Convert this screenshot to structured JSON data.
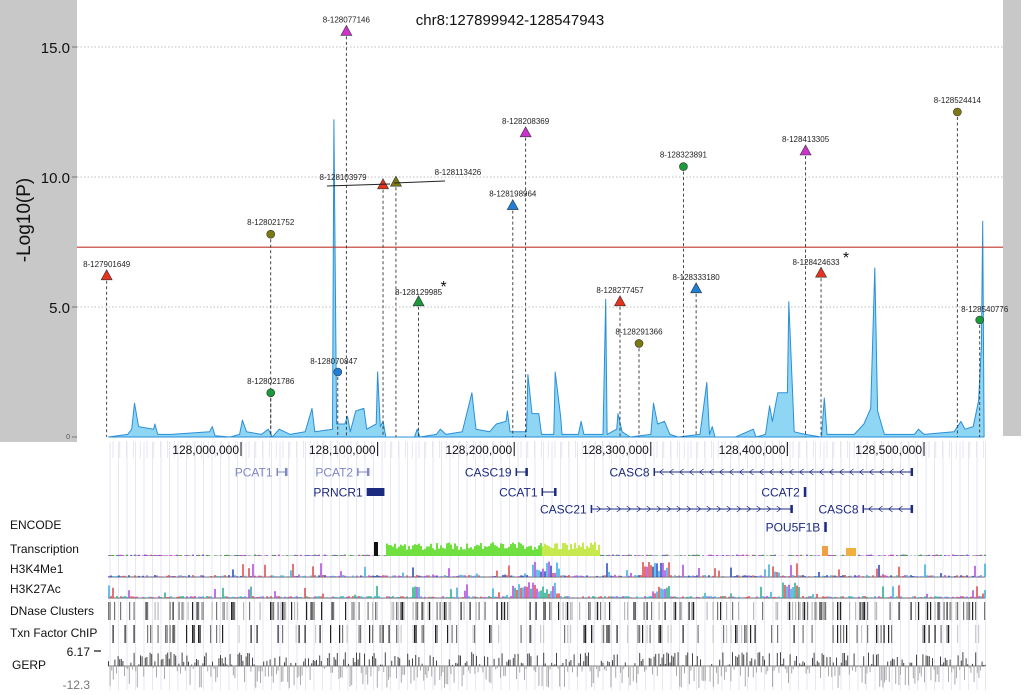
{
  "chart_data": {
    "type": "scatter",
    "title": "chr8:127899942-128547943",
    "ylabel": "-Log10(P)",
    "xlabel": "",
    "xlim": [
      127899942,
      128547943
    ],
    "ylim": [
      0,
      16.5
    ],
    "y_ticks": [
      "15.0",
      "10.0",
      "5.0",
      "0"
    ],
    "y_tick_values": [
      15,
      10,
      5,
      0
    ],
    "x_ticks": [
      "128,000,000",
      "128,100,000",
      "128,200,000",
      "128,300,000",
      "128,400,000",
      "128,500,000"
    ],
    "x_tick_values": [
      128000000,
      128100000,
      128200000,
      128300000,
      128400000,
      128500000
    ],
    "grid": "horizontal dotted",
    "threshold": {
      "value": 7.3,
      "color": "#c0392b"
    },
    "colors": {
      "magenta": "#cc33cc",
      "red": "#e8321e",
      "olive": "#7a7a10",
      "green": "#1a9a3a",
      "blue": "#1e7fd8",
      "area": "#8fd6f5",
      "area_line": "#2a8fd8"
    },
    "points": [
      {
        "label": "8-127901649",
        "pos": 127901649,
        "value": 6.2,
        "shape": "triangle",
        "color": "red"
      },
      {
        "label": "8-128021752",
        "pos": 128021752,
        "value": 7.8,
        "shape": "circle",
        "color": "olive"
      },
      {
        "label": "8-128021786",
        "pos": 128021786,
        "value": 1.7,
        "shape": "circle",
        "color": "green"
      },
      {
        "label": "8-128070847",
        "pos": 128070847,
        "value": 2.5,
        "shape": "circle",
        "color": "blue"
      },
      {
        "label": "8-128077146",
        "pos": 128077146,
        "value": 15.6,
        "shape": "triangle",
        "color": "magenta"
      },
      {
        "label": "8-128103979",
        "pos": 128103979,
        "value": 9.7,
        "shape": "triangle",
        "color": "red"
      },
      {
        "label": "8-128113426",
        "pos": 128113426,
        "value": 9.8,
        "shape": "triangle",
        "color": "olive"
      },
      {
        "label": "8-128129985",
        "pos": 128129985,
        "value": 5.2,
        "shape": "triangle",
        "color": "green",
        "asterisk": "*"
      },
      {
        "label": "8-128198964",
        "pos": 128198964,
        "value": 8.9,
        "shape": "triangle",
        "color": "blue"
      },
      {
        "label": "8-128208369",
        "pos": 128208369,
        "value": 11.7,
        "shape": "triangle",
        "color": "magenta"
      },
      {
        "label": "8-128277457",
        "pos": 128277457,
        "value": 5.2,
        "shape": "triangle",
        "color": "red"
      },
      {
        "label": "8-128291366",
        "pos": 128291366,
        "value": 3.6,
        "shape": "circle",
        "color": "olive"
      },
      {
        "label": "8-128323891",
        "pos": 128323891,
        "value": 10.4,
        "shape": "circle",
        "color": "green"
      },
      {
        "label": "8-128333180",
        "pos": 128333180,
        "value": 5.7,
        "shape": "triangle",
        "color": "blue"
      },
      {
        "label": "8-128413305",
        "pos": 128413305,
        "value": 11.0,
        "shape": "triangle",
        "color": "magenta"
      },
      {
        "label": "8-128424633",
        "pos": 128424633,
        "value": 6.3,
        "shape": "triangle",
        "color": "red",
        "asterisk": "*"
      },
      {
        "label": "8-128524414",
        "pos": 128524414,
        "value": 12.5,
        "shape": "circle",
        "color": "olive"
      },
      {
        "label": "8-128540776",
        "pos": 128540776,
        "value": 4.5,
        "shape": "circle",
        "color": "green"
      }
    ],
    "area_series": [
      [
        127903000,
        0
      ],
      [
        127917000,
        0.1
      ],
      [
        127920000,
        0.3
      ],
      [
        127922000,
        1.3
      ],
      [
        127925000,
        0.4
      ],
      [
        127936000,
        0.3
      ],
      [
        127937000,
        0.5
      ],
      [
        127939000,
        0.1
      ],
      [
        127949000,
        0.1
      ],
      [
        127977000,
        0.2
      ],
      [
        127979000,
        0.4
      ],
      [
        127981000,
        0.05
      ],
      [
        127992000,
        0
      ],
      [
        127999000,
        0.1
      ],
      [
        128001000,
        0.65
      ],
      [
        128004000,
        0.2
      ],
      [
        128015000,
        0.1
      ],
      [
        128020000,
        0.3
      ],
      [
        128023000,
        0
      ],
      [
        128028000,
        0.3
      ],
      [
        128036000,
        0.1
      ],
      [
        128047000,
        0.2
      ],
      [
        128052000,
        1.1
      ],
      [
        128054000,
        0.2
      ],
      [
        128067000,
        0.3
      ],
      [
        128068000,
        12.2
      ],
      [
        128070000,
        0.5
      ],
      [
        128076000,
        0.5
      ],
      [
        128078000,
        0.8
      ],
      [
        128080000,
        0.2
      ],
      [
        128084000,
        1.0
      ],
      [
        128090000,
        1.1
      ],
      [
        128092000,
        0.3
      ],
      [
        128099000,
        0.5
      ],
      [
        128100000,
        2.5
      ],
      [
        128102000,
        0.4
      ],
      [
        128104000,
        0.6
      ],
      [
        128106000,
        0
      ],
      [
        128127000,
        0
      ],
      [
        128129000,
        0.3
      ],
      [
        128131000,
        0
      ],
      [
        128143000,
        0.1
      ],
      [
        128146000,
        0.3
      ],
      [
        128150000,
        0.1
      ],
      [
        128162000,
        0.2
      ],
      [
        128169000,
        1.7
      ],
      [
        128172000,
        0.3
      ],
      [
        128182000,
        0.2
      ],
      [
        128187000,
        0.5
      ],
      [
        128194000,
        0.6
      ],
      [
        128195000,
        1.0
      ],
      [
        128197000,
        0.2
      ],
      [
        128209000,
        0.2
      ],
      [
        128210000,
        2.4
      ],
      [
        128213000,
        0.9
      ],
      [
        128218000,
        0.9
      ],
      [
        128220000,
        0.1
      ],
      [
        128229000,
        0.1
      ],
      [
        128230000,
        2.5
      ],
      [
        128234000,
        0.8
      ],
      [
        128235000,
        0.1
      ],
      [
        128247000,
        0.1
      ],
      [
        128249000,
        0.6
      ],
      [
        128251000,
        0.1
      ],
      [
        128265000,
        0.1
      ],
      [
        128267000,
        5.3
      ],
      [
        128268000,
        0.1
      ],
      [
        128275000,
        0.3
      ],
      [
        128276000,
        0.9
      ],
      [
        128279000,
        0.2
      ],
      [
        128285000,
        0
      ],
      [
        128300000,
        0.1
      ],
      [
        128302000,
        1.3
      ],
      [
        128305000,
        0.5
      ],
      [
        128310000,
        0.6
      ],
      [
        128314000,
        0.1
      ],
      [
        128320000,
        0
      ],
      [
        128336000,
        0.1
      ],
      [
        128341000,
        2.1
      ],
      [
        128343000,
        0.1
      ],
      [
        128345000,
        0.4
      ],
      [
        128347000,
        0
      ],
      [
        128362000,
        0
      ],
      [
        128375000,
        0.3
      ],
      [
        128377000,
        0
      ],
      [
        128384000,
        0.1
      ],
      [
        128387000,
        1.2
      ],
      [
        128389000,
        0.6
      ],
      [
        128393000,
        1.7
      ],
      [
        128400000,
        1.7
      ],
      [
        128401000,
        5.2
      ],
      [
        128405000,
        0.2
      ],
      [
        128413000,
        0.1
      ],
      [
        128425000,
        0
      ],
      [
        128427000,
        1.5
      ],
      [
        128429000,
        0.1
      ],
      [
        128449000,
        0.1
      ],
      [
        128456000,
        0.5
      ],
      [
        128461000,
        1.1
      ],
      [
        128464000,
        6.5
      ],
      [
        128466000,
        1.0
      ],
      [
        128471000,
        0.1
      ],
      [
        128493000,
        0.1
      ],
      [
        128496000,
        0.3
      ],
      [
        128500000,
        0.1
      ],
      [
        128522000,
        0.2
      ],
      [
        128527000,
        0.6
      ],
      [
        128530000,
        0.3
      ],
      [
        128536000,
        0.4
      ],
      [
        128540000,
        1.4
      ],
      [
        128542000,
        3.5
      ],
      [
        128543000,
        8.3
      ],
      [
        128544000,
        0
      ]
    ]
  },
  "genes": [
    {
      "name": "PCAT1",
      "start": 128026000,
      "end": 128034000,
      "row": 0,
      "color": "#7d87c8",
      "strand": ""
    },
    {
      "name": "PCAT2",
      "start": 128085000,
      "end": 128094000,
      "row": 0,
      "color": "#7d87c8",
      "strand": ""
    },
    {
      "name": "CASC19",
      "start": 128201000,
      "end": 128210000,
      "row": 0,
      "color": "#1c2a80",
      "strand": ""
    },
    {
      "name": "CASC8",
      "start": 128302000,
      "end": 128492000,
      "row": 0,
      "color": "#1c2a80",
      "strand": "<"
    },
    {
      "name": "PRNCR1",
      "start": 128092000,
      "end": 128105000,
      "row": 1,
      "color": "#1c2a80",
      "strand": "",
      "solid": true
    },
    {
      "name": "CCAT1",
      "start": 128220000,
      "end": 128231000,
      "row": 1,
      "color": "#1c2a80",
      "strand": ""
    },
    {
      "name": "CCAT2",
      "start": 128412000,
      "end": 128413000,
      "row": 1,
      "color": "#1c2a80",
      "strand": ""
    },
    {
      "name": "CASC21",
      "start": 128256000,
      "end": 128404000,
      "row": 2,
      "color": "#1c2a80",
      "strand": ">"
    },
    {
      "name": "CASC8",
      "start": 128455000,
      "end": 128492000,
      "row": 2,
      "color": "#1c2a80",
      "strand": "<"
    },
    {
      "name": "POU5F1B",
      "start": 128427000,
      "end": 128428000,
      "row": 3,
      "color": "#1c2a80",
      "strand": ""
    }
  ],
  "tracks": {
    "encode": "ENCODE",
    "transcription": "Transcription",
    "h3k4me1": "H3K4Me1",
    "h3k27ac": "H3K27Ac",
    "dnase": "DNase Clusters",
    "txn": "Txn Factor ChIP",
    "gerp": "GERP",
    "gerp_max": "6.17",
    "gerp_min": "-12.3"
  }
}
